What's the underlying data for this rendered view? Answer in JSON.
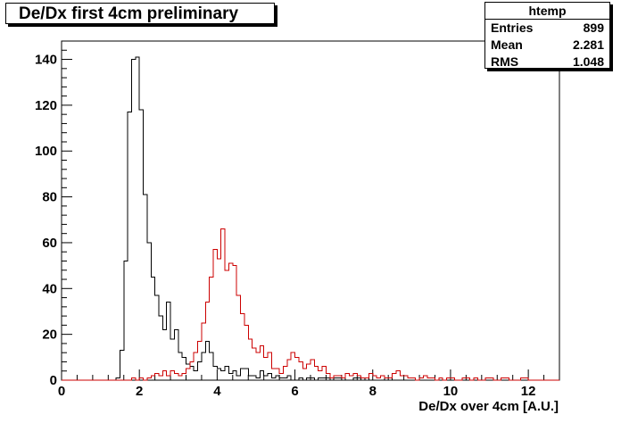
{
  "title": "De/Dx first 4cm preliminary",
  "stats": {
    "name": "htemp",
    "rows": [
      {
        "label": "Entries",
        "value": "899"
      },
      {
        "label": "Mean",
        "value": "2.281"
      },
      {
        "label": "RMS",
        "value": "1.048"
      }
    ]
  },
  "colors": {
    "series1": "#000000",
    "series2": "#cc0000",
    "axis": "#000000"
  },
  "chart_data": {
    "type": "histogram",
    "title": "De/Dx first 4cm preliminary",
    "xlabel": "De/Dx over 4cm [A.U.]",
    "ylabel": "",
    "xlim": [
      0,
      12.8
    ],
    "ylim": [
      0,
      148
    ],
    "bin_width": 0.1,
    "xticks": [
      0,
      2,
      4,
      6,
      8,
      10,
      12
    ],
    "yticks": [
      0,
      20,
      40,
      60,
      80,
      100,
      120,
      140
    ],
    "grid": false,
    "series": [
      {
        "x_start": 1.2,
        "values": [
          0,
          0,
          1,
          13,
          52,
          117,
          140,
          141,
          118,
          81,
          60,
          45,
          37,
          28,
          22,
          34,
          18,
          22,
          12,
          10,
          7,
          6,
          4,
          8,
          12,
          17,
          12,
          6,
          5,
          4,
          6,
          3,
          4,
          2,
          5,
          5,
          2,
          2,
          1,
          4,
          2,
          3,
          1,
          2,
          1,
          1,
          2,
          0,
          0,
          1,
          0,
          1,
          1,
          0,
          1,
          1,
          1,
          0,
          1,
          1,
          1,
          0,
          0,
          1,
          1,
          0,
          1,
          0,
          0,
          0,
          0,
          1,
          1
        ]
      },
      {
        "x_start": 1.8,
        "values": [
          1,
          0,
          1,
          0,
          1,
          2,
          3,
          2,
          4,
          2,
          4,
          3,
          2,
          3,
          5,
          8,
          12,
          17,
          25,
          34,
          45,
          57,
          53,
          66,
          48,
          51,
          50,
          37,
          29,
          24,
          18,
          14,
          12,
          15,
          10,
          12,
          5,
          5,
          3,
          6,
          9,
          12,
          10,
          8,
          5,
          7,
          9,
          6,
          4,
          6,
          3,
          1,
          2,
          2,
          1,
          3,
          2,
          3,
          2,
          1,
          1,
          3,
          2,
          1,
          2,
          1,
          1,
          3,
          4,
          2,
          2,
          1,
          1,
          0,
          1,
          2,
          1,
          1,
          0,
          1,
          0,
          1,
          1,
          0,
          0,
          1,
          1,
          0,
          1,
          0,
          0,
          1,
          1,
          0,
          0,
          1,
          1,
          0,
          0,
          0,
          1,
          1
        ]
      }
    ]
  }
}
